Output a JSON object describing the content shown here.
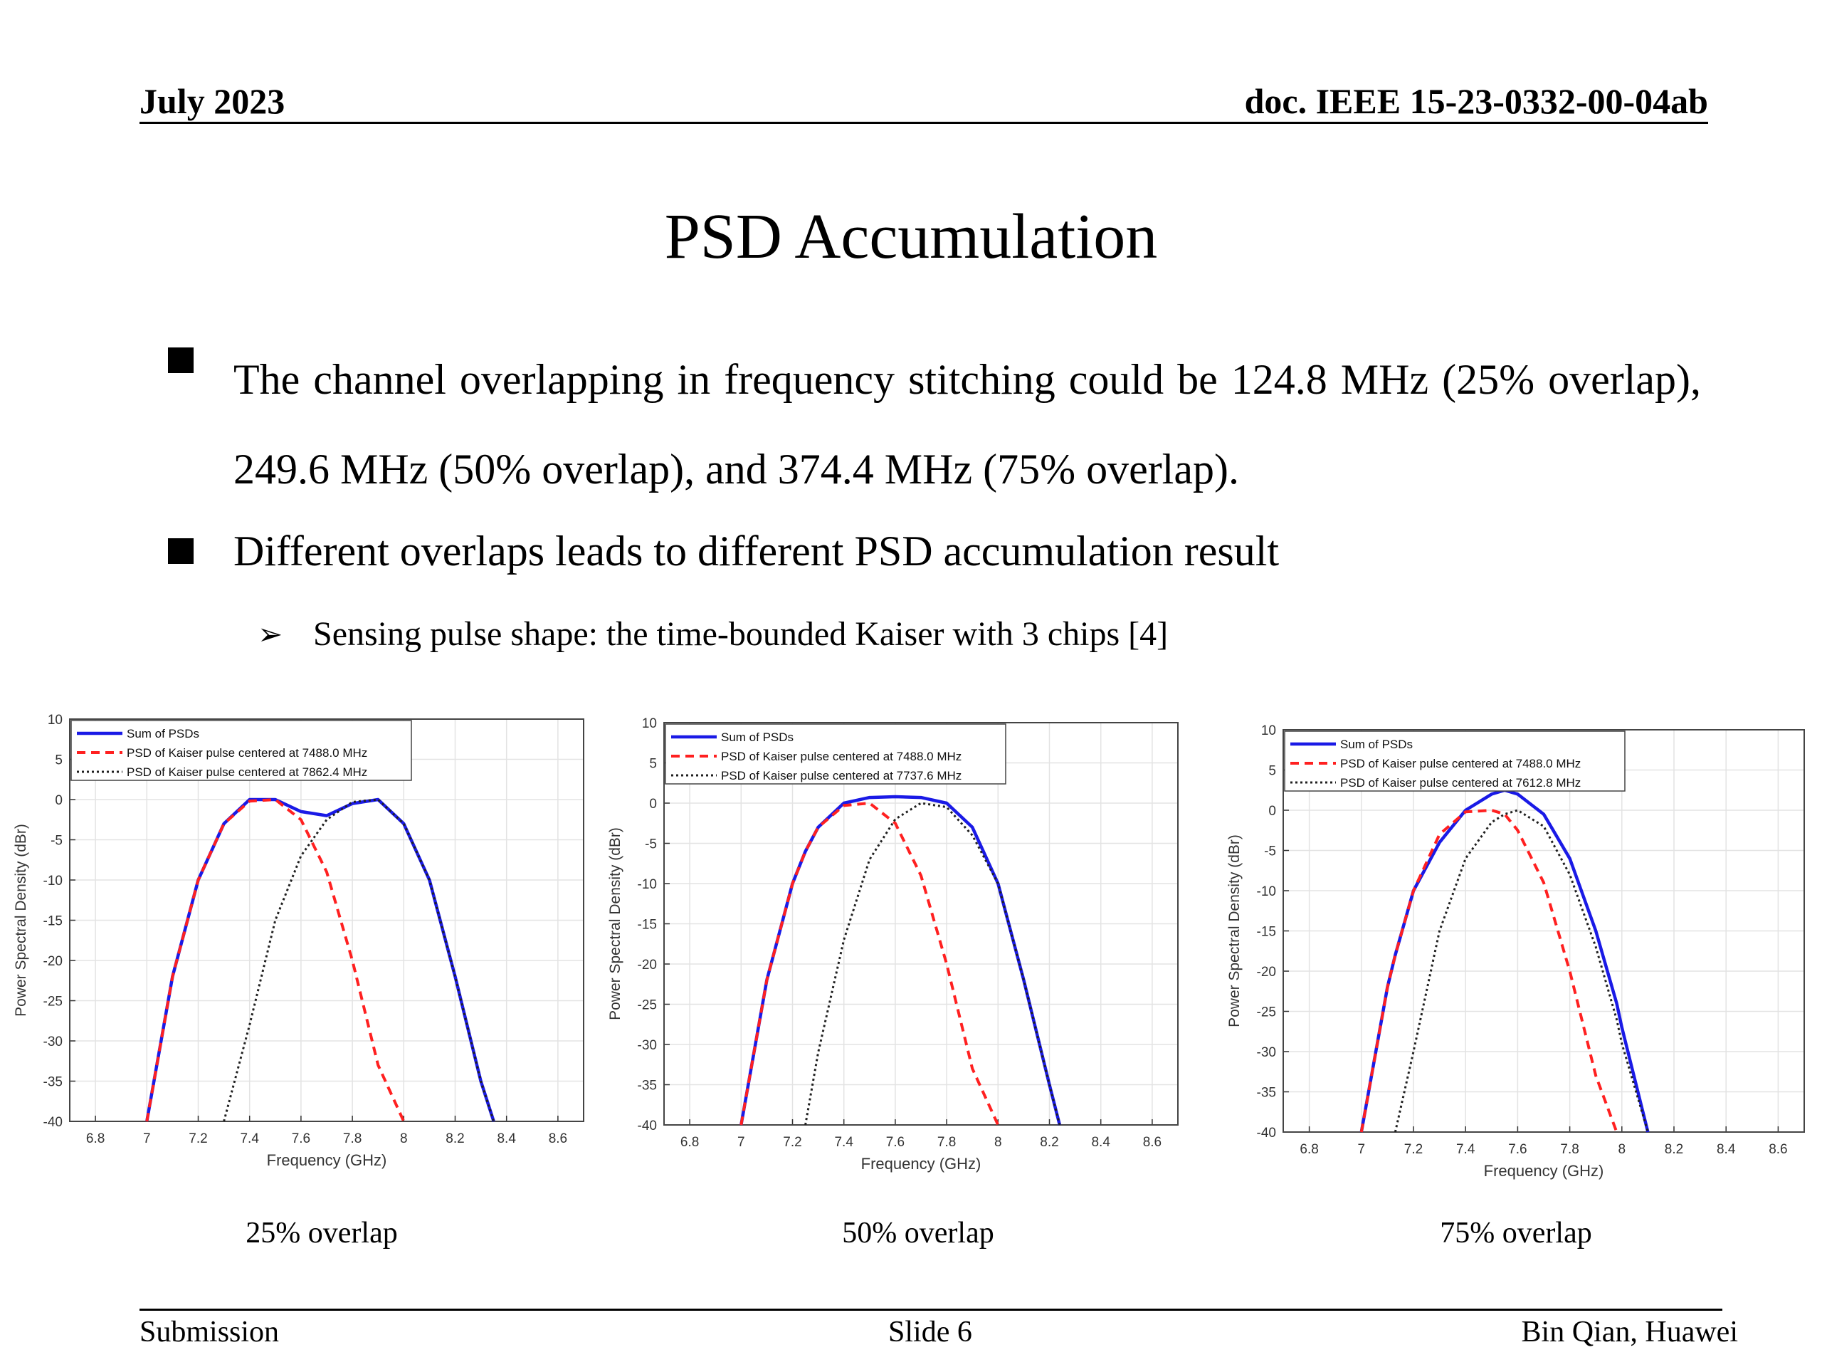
{
  "header": {
    "date": "July 2023",
    "doc": "doc. IEEE 15-23-0332-00-04ab"
  },
  "title": "PSD Accumulation",
  "bullets": [
    "The channel overlapping in frequency stitching could be 124.8 MHz (25% overlap), 249.6 MHz (50% overlap), and 374.4 MHz (75% overlap).",
    "Different overlaps leads to different PSD accumulation result"
  ],
  "sub_bullet": {
    "icon": "arrow-bullet-icon",
    "text": "Sensing pulse shape: the time-bounded Kaiser with 3 chips [4]"
  },
  "captions": [
    "25% overlap",
    "50% overlap",
    "75% overlap"
  ],
  "footer": {
    "left": "Submission",
    "center": "Slide 6",
    "right": "Bin Qian, Huawei"
  },
  "colors": {
    "sum": "#1a1ae6",
    "pulse1": "#ff2020",
    "pulse2": "#202020",
    "grid": "#e3e3e3"
  },
  "chart_data": [
    {
      "type": "line",
      "title": "",
      "xlabel": "Frequency (GHz)",
      "ylabel": "Power Spectral Density (dBr)",
      "xlim": [
        6.7,
        8.7
      ],
      "ylim": [
        -40,
        10
      ],
      "xticks": [
        6.8,
        7,
        7.2,
        7.4,
        7.6,
        7.8,
        8,
        8.2,
        8.4,
        8.6
      ],
      "xtick_labels": [
        "6.8",
        "7",
        "7.2",
        "7.4",
        "7.6",
        "7.8",
        "8",
        "8.2",
        "8.4",
        "8.6"
      ],
      "yticks": [
        10,
        5,
        0,
        -5,
        -10,
        -15,
        -20,
        -25,
        -30,
        -35,
        -40
      ],
      "ytick_labels": [
        "10",
        "5",
        "0",
        "-5",
        "-10",
        "-15",
        "-20",
        "-25",
        "-30",
        "-35",
        "-40"
      ],
      "legend": [
        "Sum of PSDs",
        "PSD of Kaiser pulse centered at 7488.0 MHz",
        "PSD of Kaiser pulse centered at 7862.4 MHz"
      ],
      "legend_position": "top-left",
      "grid": true,
      "x": [
        7.0,
        7.1,
        7.2,
        7.3,
        7.4,
        7.5,
        7.6,
        7.7,
        7.8,
        7.9,
        8.0,
        8.1,
        8.2,
        8.3,
        8.35
      ],
      "series": [
        {
          "name": "Sum of PSDs",
          "style": "solid",
          "values": [
            -40,
            -22,
            -10,
            -3,
            0,
            0,
            -1.5,
            -2,
            -0.5,
            0,
            -3,
            -10,
            -22,
            -35,
            -40
          ]
        },
        {
          "name": "PSD of Kaiser pulse centered at 7488.0 MHz",
          "style": "dashed",
          "values": [
            -40,
            -22,
            -10,
            -3,
            -0.2,
            0,
            -2.5,
            -9,
            -20,
            -33,
            -40,
            null,
            null,
            null,
            null
          ]
        },
        {
          "name": "PSD of Kaiser pulse centered at 7862.4 MHz",
          "style": "dotted",
          "values": [
            null,
            null,
            null,
            -40,
            -28,
            -15,
            -7,
            -2.5,
            -0.3,
            0,
            -3,
            -10,
            -22,
            -35,
            -40
          ]
        }
      ]
    },
    {
      "type": "line",
      "title": "",
      "xlabel": "Frequency (GHz)",
      "ylabel": "Power Spectral Density (dBr)",
      "xlim": [
        6.7,
        8.7
      ],
      "ylim": [
        -40,
        10
      ],
      "xticks": [
        6.8,
        7,
        7.2,
        7.4,
        7.6,
        7.8,
        8,
        8.2,
        8.4,
        8.6
      ],
      "xtick_labels": [
        "6.8",
        "7",
        "7.2",
        "7.4",
        "7.6",
        "7.8",
        "8",
        "8.2",
        "8.4",
        "8.6"
      ],
      "yticks": [
        10,
        5,
        0,
        -5,
        -10,
        -15,
        -20,
        -25,
        -30,
        -35,
        -40
      ],
      "ytick_labels": [
        "10",
        "5",
        "0",
        "-5",
        "-10",
        "-15",
        "-20",
        "-25",
        "-30",
        "-35",
        "-40"
      ],
      "legend": [
        "Sum of PSDs",
        "PSD of Kaiser pulse centered at 7488.0 MHz",
        "PSD of Kaiser pulse centered at 7737.6 MHz"
      ],
      "legend_position": "top-left",
      "grid": true,
      "x": [
        7.0,
        7.1,
        7.2,
        7.25,
        7.3,
        7.4,
        7.5,
        7.6,
        7.7,
        7.8,
        7.9,
        8.0,
        8.1,
        8.2,
        8.24
      ],
      "series": [
        {
          "name": "Sum of PSDs",
          "style": "solid",
          "values": [
            -40,
            -22,
            -10,
            -6,
            -3,
            0,
            0.7,
            0.8,
            0.7,
            0,
            -3,
            -10,
            -22,
            -35,
            -40
          ]
        },
        {
          "name": "PSD of Kaiser pulse centered at 7488.0 MHz",
          "style": "dashed",
          "values": [
            -40,
            -22,
            -10,
            -6,
            -3,
            -0.3,
            0,
            -2.5,
            -9,
            -20,
            -33,
            -40,
            null,
            null,
            null
          ]
        },
        {
          "name": "PSD of Kaiser pulse centered at 7737.6 MHz",
          "style": "dotted",
          "values": [
            null,
            null,
            null,
            -40,
            -31,
            -17,
            -7,
            -2,
            0,
            -0.5,
            -4,
            -10,
            -22,
            -35,
            -40
          ]
        }
      ]
    },
    {
      "type": "line",
      "title": "",
      "xlabel": "Frequency (GHz)",
      "ylabel": "Power Spectral Density (dBr)",
      "xlim": [
        6.7,
        8.7
      ],
      "ylim": [
        -40,
        10
      ],
      "xticks": [
        6.8,
        7,
        7.2,
        7.4,
        7.6,
        7.8,
        8,
        8.2,
        8.4,
        8.6
      ],
      "xtick_labels": [
        "6.8",
        "7",
        "7.2",
        "7.4",
        "7.6",
        "7.8",
        "8",
        "8.2",
        "8.4",
        "8.6"
      ],
      "yticks": [
        10,
        5,
        0,
        -5,
        -10,
        -15,
        -20,
        -25,
        -30,
        -35,
        -40
      ],
      "ytick_labels": [
        "10",
        "5",
        "0",
        "-5",
        "-10",
        "-15",
        "-20",
        "-25",
        "-30",
        "-35",
        "-40"
      ],
      "legend": [
        "Sum of PSDs",
        "PSD of Kaiser pulse centered at 7488.0 MHz",
        "PSD of Kaiser pulse centered at 7612.8 MHz"
      ],
      "legend_position": "top-left",
      "grid": true,
      "x": [
        7.0,
        7.1,
        7.13,
        7.2,
        7.3,
        7.4,
        7.5,
        7.55,
        7.6,
        7.7,
        7.8,
        7.9,
        7.98,
        8.0,
        8.1
      ],
      "series": [
        {
          "name": "Sum of PSDs",
          "style": "solid",
          "values": [
            -40,
            -22,
            -18,
            -10,
            -4,
            0,
            2,
            2.5,
            2,
            -0.5,
            -6,
            -15,
            -24,
            -27,
            -40
          ]
        },
        {
          "name": "PSD of Kaiser pulse centered at 7488.0 MHz",
          "style": "dashed",
          "values": [
            -40,
            -22,
            -18,
            -10,
            -3,
            -0.2,
            0,
            -0.5,
            -2.5,
            -9,
            -20,
            -33,
            -40,
            null,
            null
          ]
        },
        {
          "name": "PSD of Kaiser pulse centered at 7612.8 MHz",
          "style": "dotted",
          "values": [
            null,
            null,
            -40,
            -30,
            -15,
            -6,
            -1.5,
            -0.5,
            0,
            -2,
            -8,
            -17,
            -26,
            -29,
            -40
          ]
        }
      ]
    }
  ]
}
